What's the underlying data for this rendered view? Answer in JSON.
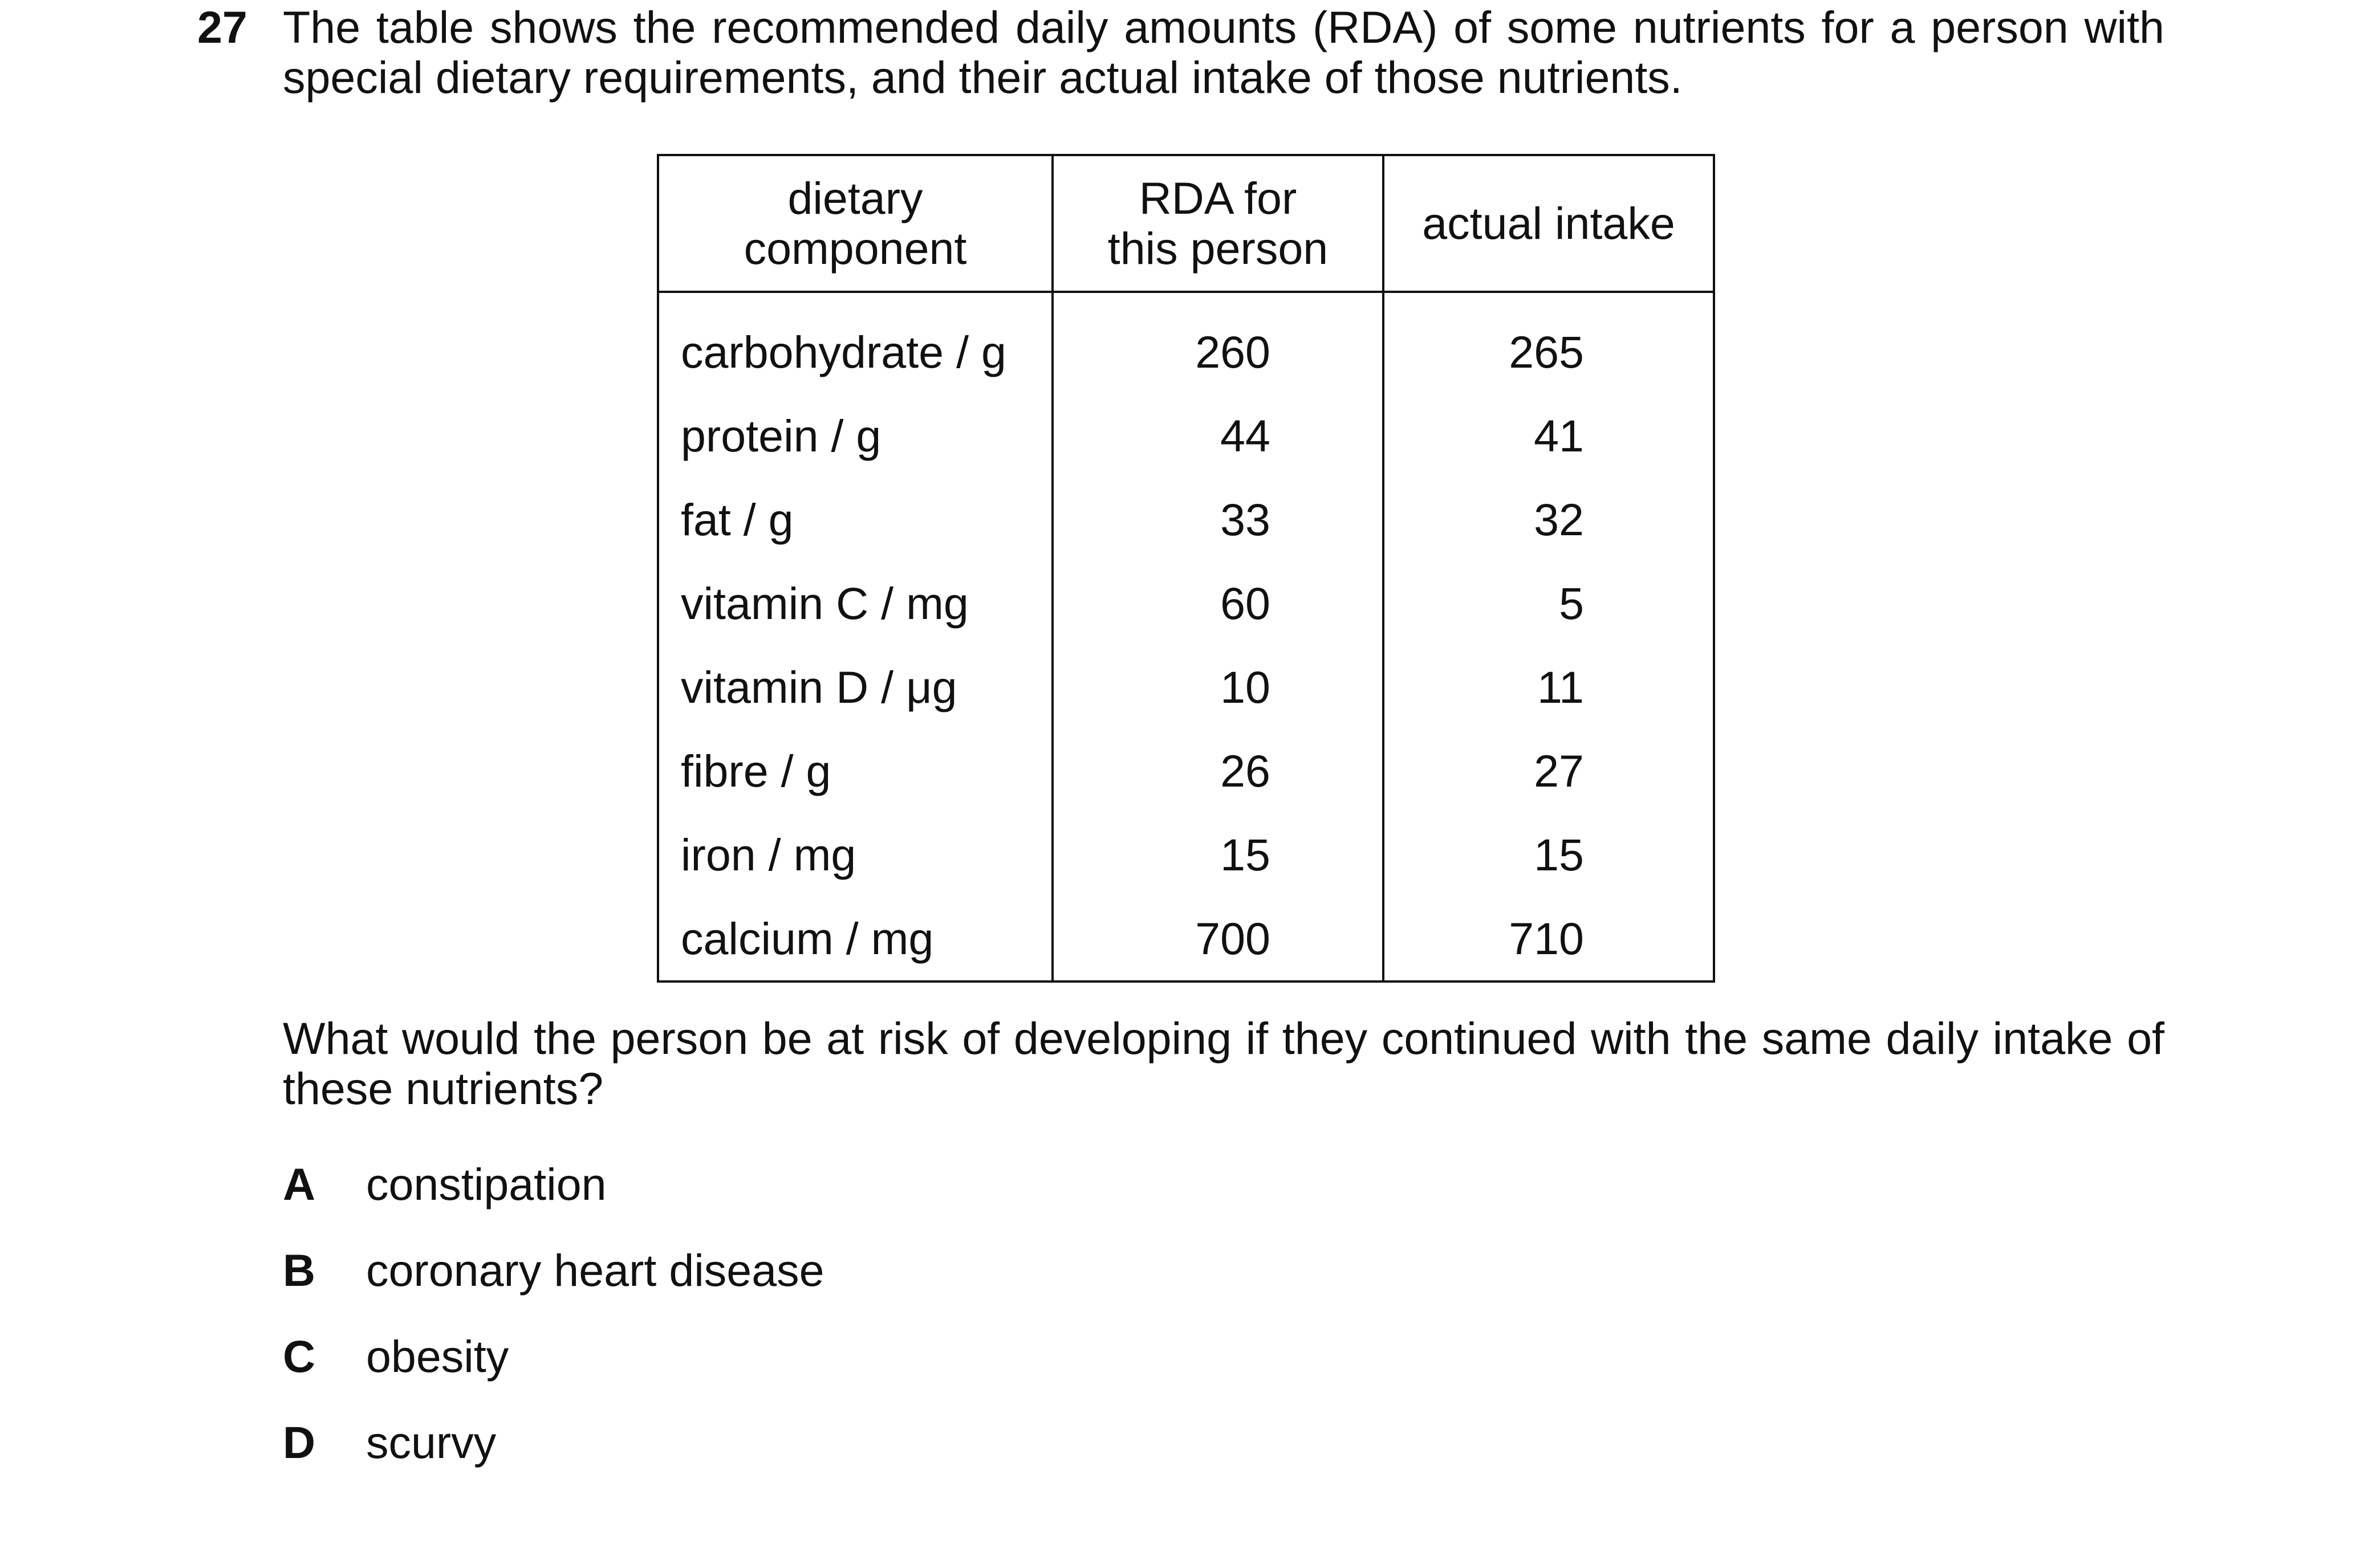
{
  "question": {
    "number": "27",
    "stem": "The table shows the recommended daily amounts (RDA) of some nutrients for a person with special dietary requirements, and their actual intake of those nutrients.",
    "prompt": "What would the person be at risk of developing if they continued with the same daily intake of these nutrients?"
  },
  "table": {
    "headers": {
      "component_line1": "dietary",
      "component_line2": "component",
      "rda_line1": "RDA for",
      "rda_line2": "this person",
      "actual": "actual intake"
    },
    "rows": [
      {
        "component": "carbohydrate / g",
        "rda": "260",
        "actual": "265"
      },
      {
        "component": "protein / g",
        "rda": "44",
        "actual": "41"
      },
      {
        "component": "fat / g",
        "rda": "33",
        "actual": "32"
      },
      {
        "component": "vitamin C / mg",
        "rda": "60",
        "actual": "5"
      },
      {
        "component": "vitamin D / μg",
        "rda": "10",
        "actual": "11"
      },
      {
        "component": "fibre / g",
        "rda": "26",
        "actual": "27"
      },
      {
        "component": "iron / mg",
        "rda": "15",
        "actual": "15"
      },
      {
        "component": "calcium / mg",
        "rda": "700",
        "actual": "710"
      }
    ]
  },
  "options": [
    {
      "letter": "A",
      "text": "constipation"
    },
    {
      "letter": "B",
      "text": "coronary heart disease"
    },
    {
      "letter": "C",
      "text": "obesity"
    },
    {
      "letter": "D",
      "text": "scurvy"
    }
  ]
}
